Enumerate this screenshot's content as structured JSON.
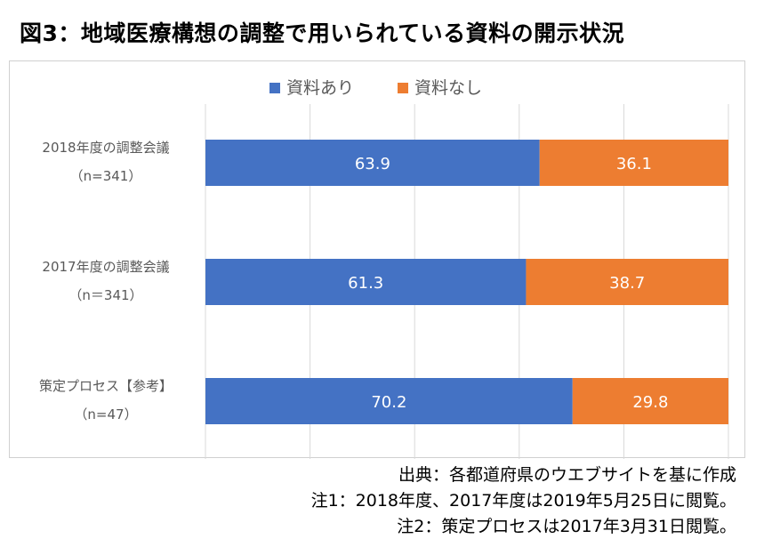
{
  "title": "図3：地域医療構想の調整で用いられている資料の開示状況",
  "chart_data": {
    "type": "bar",
    "stacked": true,
    "orientation": "horizontal",
    "categories": [
      {
        "label": "2018年度の調整会議",
        "sublabel": "（n=341）"
      },
      {
        "label": "2017年度の調整会議",
        "sublabel": "（n＝341）"
      },
      {
        "label": "策定プロセス【参考】",
        "sublabel": "（n=47）"
      }
    ],
    "series": [
      {
        "name": "資料あり",
        "color": "#4472C4",
        "values": [
          63.9,
          61.3,
          70.2
        ]
      },
      {
        "name": "資料なし",
        "color": "#ED7D31",
        "values": [
          36.1,
          38.7,
          29.8
        ]
      }
    ],
    "xlim": [
      0,
      100
    ],
    "grid": true,
    "legend_position": "top",
    "data_label_color": "#ffffff"
  },
  "notes": [
    "出典：各都道府県のウエブサイトを基に作成",
    "注1：2018年度、2017年度は2019年5月25日に閲覧。",
    "注2：策定プロセスは2017年3月31日閲覧。"
  ]
}
